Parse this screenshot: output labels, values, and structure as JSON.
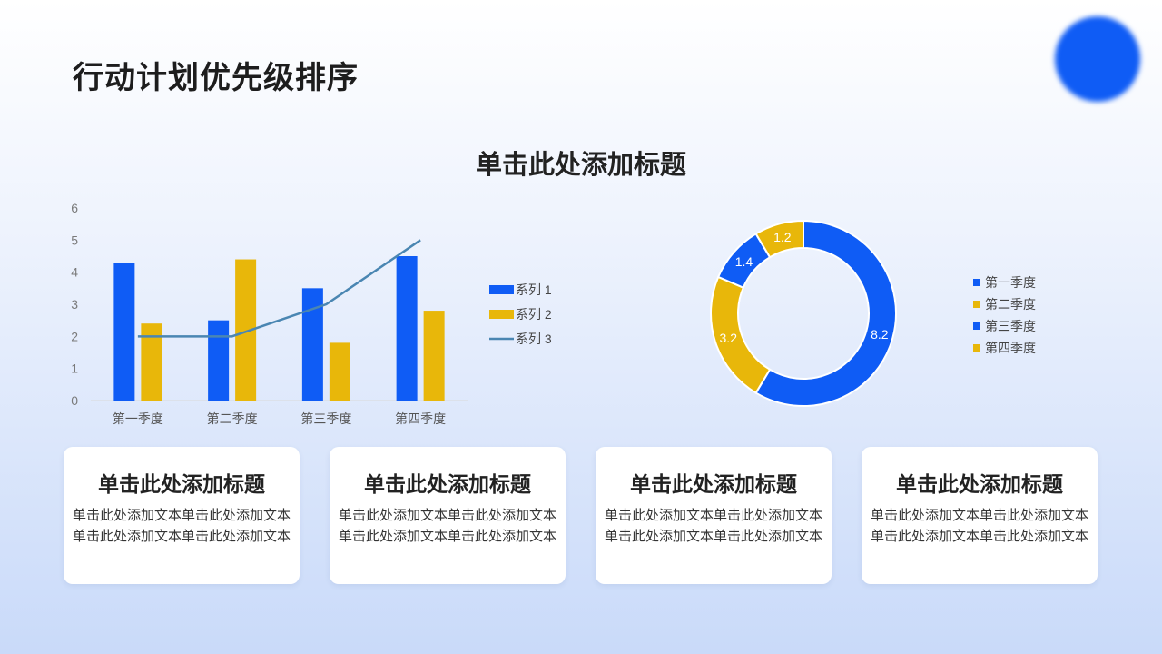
{
  "page": {
    "title": "行动计划优先级排序"
  },
  "chart_section": {
    "title": "单击此处添加标题"
  },
  "colors": {
    "blue": "#0f5cf5",
    "yellow": "#e8b70a",
    "teal": "#4a86b2"
  },
  "chart_data": [
    {
      "type": "bar",
      "categories": [
        "第一季度",
        "第二季度",
        "第三季度",
        "第四季度"
      ],
      "series": [
        {
          "name": "系列 1",
          "type": "bar",
          "values": [
            4.3,
            2.5,
            3.5,
            4.5
          ]
        },
        {
          "name": "系列 2",
          "type": "bar",
          "values": [
            2.4,
            4.4,
            1.8,
            2.8
          ]
        },
        {
          "name": "系列 3",
          "type": "line",
          "values": [
            2,
            2,
            3,
            5
          ]
        }
      ],
      "ylim": [
        0,
        6
      ],
      "yticks": [
        "0",
        "1",
        "2",
        "3",
        "4",
        "5",
        "6"
      ],
      "legend": "right",
      "grid": false
    },
    {
      "type": "pie",
      "donut": true,
      "labels": [
        "第一季度",
        "第二季度",
        "第三季度",
        "第四季度"
      ],
      "values": [
        8.2,
        3.2,
        1.4,
        1.2
      ],
      "value_labels": [
        "8.2",
        "3.2",
        "1.4",
        "1.2"
      ],
      "legend": "right"
    }
  ],
  "cards": [
    {
      "title": "单击此处添加标题",
      "text": "单击此处添加文本单击此处添加文本单击此处添加文本单击此处添加文本"
    },
    {
      "title": "单击此处添加标题",
      "text": "单击此处添加文本单击此处添加文本单击此处添加文本单击此处添加文本"
    },
    {
      "title": "单击此处添加标题",
      "text": "单击此处添加文本单击此处添加文本单击此处添加文本单击此处添加文本"
    },
    {
      "title": "单击此处添加标题",
      "text": "单击此处添加文本单击此处添加文本单击此处添加文本单击此处添加文本"
    }
  ]
}
